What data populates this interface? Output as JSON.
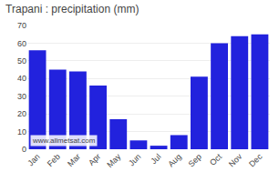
{
  "chart_data": {
    "type": "bar",
    "title": "Trapani : precipitation (mm)",
    "categories": [
      "Jan",
      "Feb",
      "Mar",
      "Apr",
      "May",
      "Jun",
      "Jul",
      "Aug",
      "Sep",
      "Oct",
      "Nov",
      "Dec"
    ],
    "values": [
      56,
      45,
      44,
      36,
      17,
      5,
      2,
      8,
      41,
      60,
      64,
      65
    ],
    "color": "#2222dd",
    "ylim": [
      0,
      70
    ],
    "yticks": [
      0,
      10,
      20,
      30,
      40,
      50,
      60,
      70
    ],
    "grid": true,
    "annotations": [
      "www.allmetsat.com"
    ]
  }
}
